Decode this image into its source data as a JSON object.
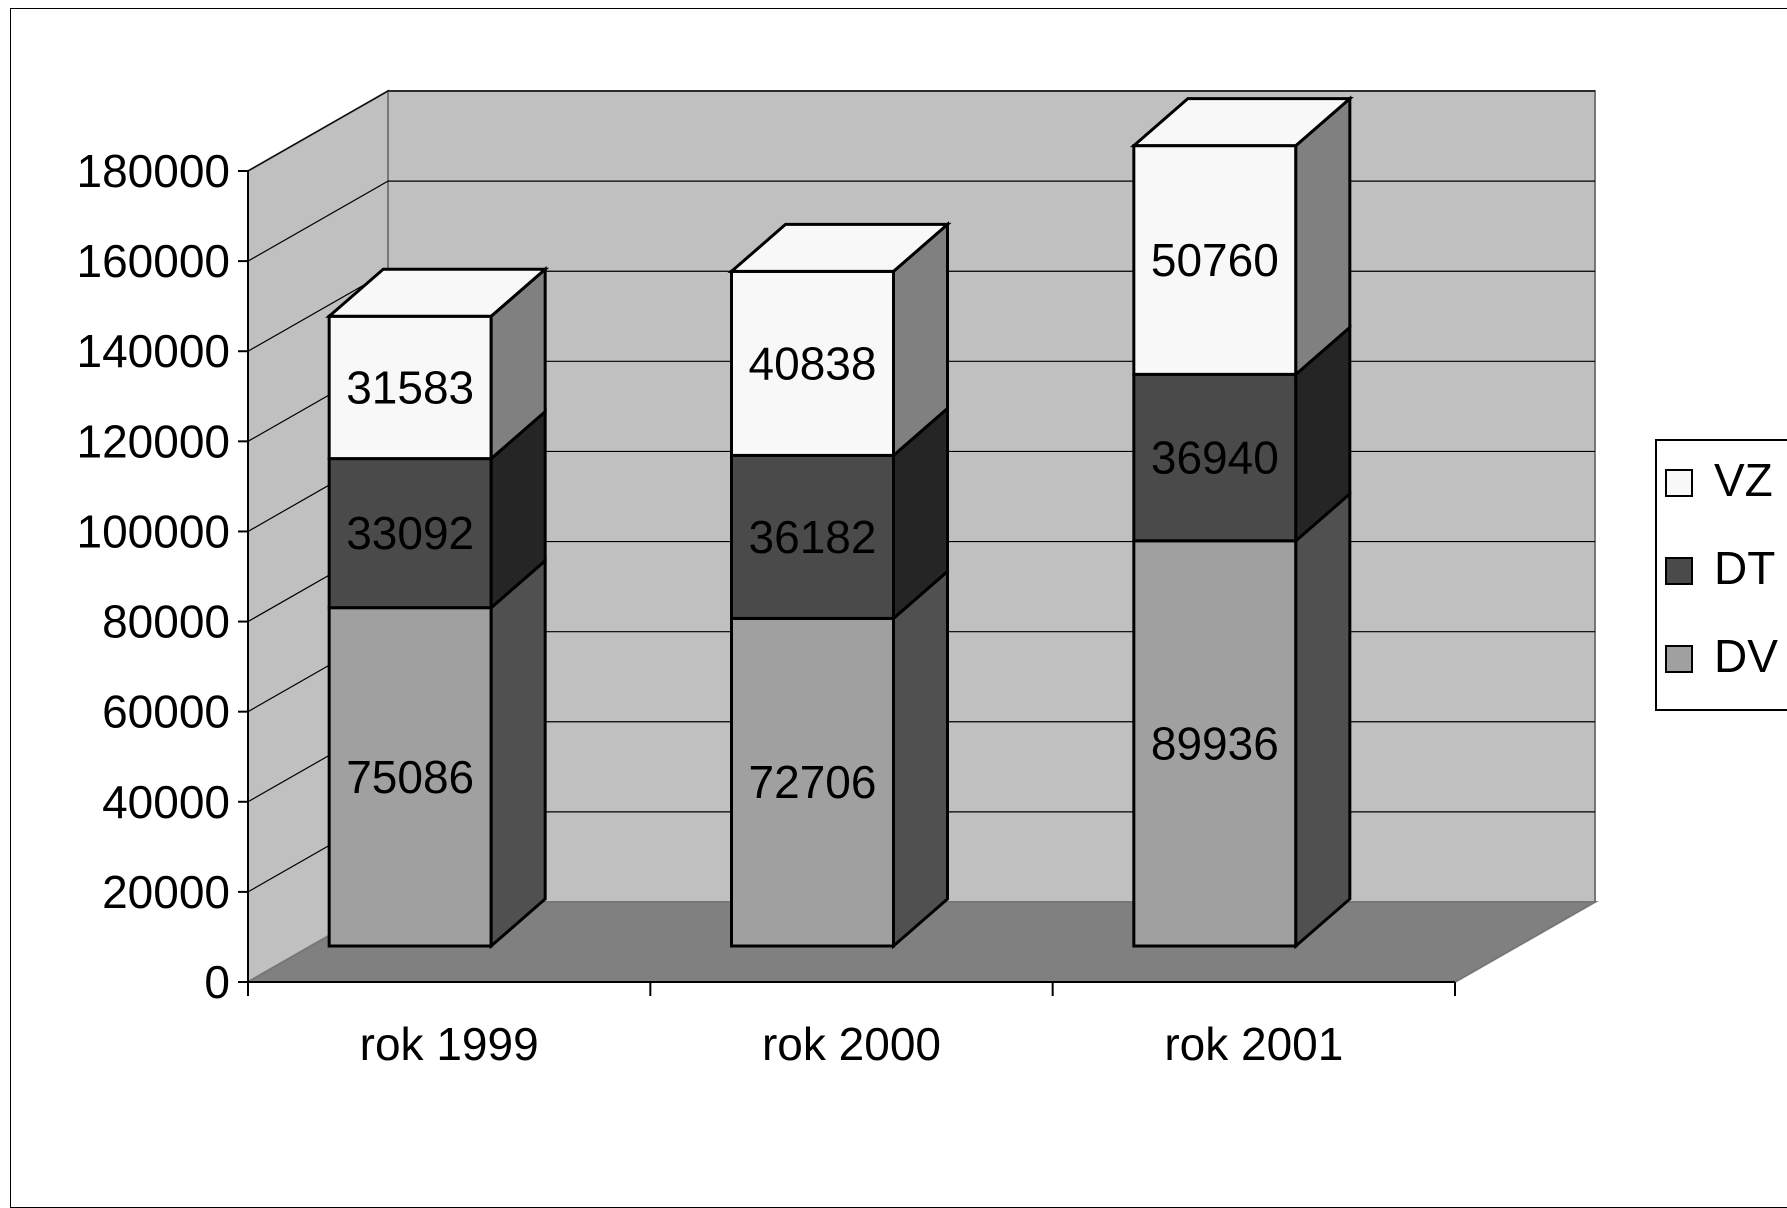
{
  "chart_data": {
    "type": "bar",
    "stacked": true,
    "three_d": true,
    "categories": [
      "rok 1999",
      "rok 2000",
      "rok 2001"
    ],
    "series": [
      {
        "name": "DV",
        "values": [
          75086,
          72706,
          89936
        ],
        "color": "#a0a0a0",
        "side_color": "#505050"
      },
      {
        "name": "DT",
        "values": [
          33092,
          36182,
          36940
        ],
        "color": "#4a4a4a",
        "side_color": "#252525"
      },
      {
        "name": "VZ",
        "values": [
          31583,
          40838,
          50760
        ],
        "color": "#f8f8f8",
        "side_color": "#808080"
      }
    ],
    "ylim": [
      0,
      180000
    ],
    "yticks": [
      0,
      20000,
      40000,
      60000,
      80000,
      100000,
      120000,
      140000,
      160000,
      180000
    ],
    "grid": true,
    "legend": {
      "position": "right",
      "order": [
        "VZ",
        "DT",
        "DV"
      ]
    },
    "colors": {
      "wall": "#c0c0c0",
      "side_wall": "#c0c0c0",
      "floor": "#808080"
    }
  }
}
